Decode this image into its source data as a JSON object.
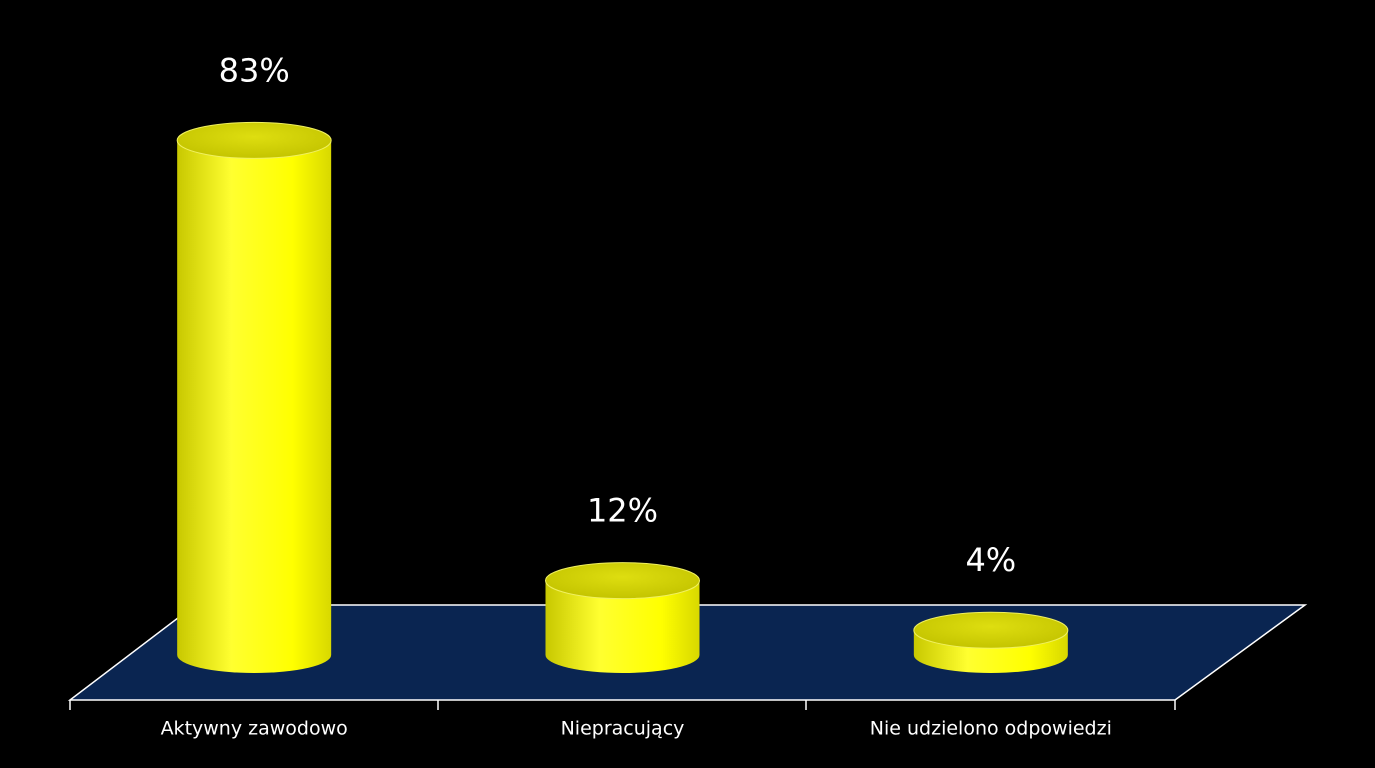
{
  "chart_data": {
    "type": "bar",
    "categories": [
      "Aktywny zawodowo",
      "Niepracujący",
      "Nie udzielono odpowiedzi"
    ],
    "values": [
      83,
      12,
      4
    ],
    "value_labels": [
      "83%",
      "12%",
      "4%"
    ],
    "color": "#ffff00"
  }
}
